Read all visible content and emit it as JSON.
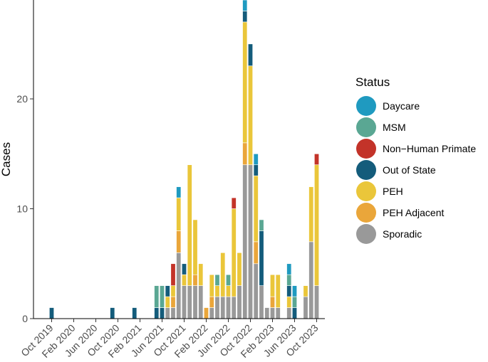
{
  "chart_data": {
    "type": "bar",
    "stacked": true,
    "xlabel": "",
    "ylabel": "Cases",
    "ylim": [
      0,
      29
    ],
    "y_ticks": [
      0,
      10,
      20
    ],
    "x_tick_labels": [
      "Oct 2019",
      "Feb 2020",
      "Jun 2020",
      "Oct 2020",
      "Feb 2021",
      "Jun 2021",
      "Oct 2021",
      "Feb 2022",
      "Jun 2022",
      "Oct 2022",
      "Feb 2023",
      "Jun 2023",
      "Oct 2023"
    ],
    "legend_title": "Status",
    "legend_position": "right",
    "grid": false,
    "categories": [
      "Oct 2019",
      "Nov 2019",
      "Dec 2019",
      "Jan 2020",
      "Feb 2020",
      "Mar 2020",
      "Apr 2020",
      "May 2020",
      "Jun 2020",
      "Jul 2020",
      "Aug 2020",
      "Sep 2020",
      "Oct 2020",
      "Nov 2020",
      "Dec 2020",
      "Jan 2021",
      "Feb 2021",
      "Mar 2021",
      "Apr 2021",
      "May 2021",
      "Jun 2021",
      "Jul 2021",
      "Aug 2021",
      "Sep 2021",
      "Oct 2021",
      "Nov 2021",
      "Dec 2021",
      "Jan 2022",
      "Feb 2022",
      "Mar 2022",
      "Apr 2022",
      "May 2022",
      "Jun 2022",
      "Jul 2022",
      "Aug 2022",
      "Sep 2022",
      "Oct 2022",
      "Nov 2022",
      "Dec 2022",
      "Jan 2023",
      "Feb 2023",
      "Mar 2023",
      "Apr 2023",
      "May 2023",
      "Jun 2023",
      "Jul 2023",
      "Aug 2023",
      "Sep 2023",
      "Oct 2023",
      "Nov 2023"
    ],
    "series": [
      {
        "name": "Sporadic",
        "color": "#999999",
        "values": [
          0,
          0,
          0,
          0,
          0,
          0,
          0,
          0,
          0,
          0,
          0,
          0,
          0,
          0,
          0,
          0,
          0,
          0,
          0,
          0,
          0,
          1,
          1,
          6,
          3,
          3,
          3,
          3,
          0,
          1,
          2,
          2,
          2,
          2,
          3,
          14,
          14,
          5,
          3,
          1,
          1,
          1,
          0,
          1,
          0,
          0,
          2,
          7,
          3,
          0
        ]
      },
      {
        "name": "PEH Adjacent",
        "color": "#EAA63A",
        "values": [
          0,
          0,
          0,
          0,
          0,
          0,
          0,
          0,
          0,
          0,
          0,
          0,
          0,
          0,
          0,
          0,
          0,
          0,
          0,
          0,
          0,
          0,
          1,
          2,
          0,
          0,
          1,
          0,
          1,
          1,
          0,
          0,
          0,
          0,
          0,
          2,
          0,
          2,
          0,
          0,
          1,
          0,
          0,
          0,
          0,
          0,
          0,
          0,
          0,
          0
        ]
      },
      {
        "name": "PEH",
        "color": "#EAC63A",
        "values": [
          0,
          0,
          0,
          0,
          0,
          0,
          0,
          0,
          0,
          0,
          0,
          0,
          0,
          0,
          0,
          0,
          0,
          0,
          0,
          0,
          0,
          1,
          1,
          3,
          1,
          11,
          5,
          2,
          0,
          2,
          1,
          4,
          1,
          8,
          3,
          11,
          9,
          6,
          0,
          0,
          2,
          3,
          0,
          1,
          0,
          0,
          1,
          5,
          11,
          0
        ]
      },
      {
        "name": "Out of State",
        "color": "#145C7B",
        "values": [
          1,
          0,
          0,
          0,
          0,
          0,
          0,
          0,
          0,
          0,
          0,
          1,
          0,
          0,
          0,
          1,
          0,
          0,
          0,
          1,
          1,
          1,
          0,
          0,
          1,
          0,
          0,
          0,
          0,
          0,
          0,
          0,
          0,
          0,
          0,
          1,
          2,
          1,
          5,
          0,
          0,
          0,
          0,
          1,
          1,
          0,
          0,
          0,
          0,
          0
        ]
      },
      {
        "name": "MSM",
        "color": "#5AA793",
        "values": [
          0,
          0,
          0,
          0,
          0,
          0,
          0,
          0,
          0,
          0,
          0,
          0,
          0,
          0,
          0,
          0,
          0,
          0,
          0,
          2,
          2,
          0,
          0,
          0,
          0,
          0,
          0,
          0,
          0,
          0,
          1,
          0,
          1,
          0,
          0,
          0,
          0,
          0,
          1,
          0,
          0,
          0,
          0,
          1,
          1,
          0,
          0,
          0,
          0,
          0
        ]
      },
      {
        "name": "Non−Human Primate",
        "color": "#C33329",
        "values": [
          0,
          0,
          0,
          0,
          0,
          0,
          0,
          0,
          0,
          0,
          0,
          0,
          0,
          0,
          0,
          0,
          0,
          0,
          0,
          0,
          0,
          0,
          2,
          0,
          0,
          0,
          0,
          0,
          0,
          0,
          0,
          0,
          0,
          1,
          0,
          0,
          0,
          0,
          0,
          0,
          0,
          0,
          0,
          0,
          0,
          0,
          0,
          0,
          1,
          0
        ]
      },
      {
        "name": "Daycare",
        "color": "#1F9AC0",
        "values": [
          0,
          0,
          0,
          0,
          0,
          0,
          0,
          0,
          0,
          0,
          0,
          0,
          0,
          0,
          0,
          0,
          0,
          0,
          0,
          0,
          0,
          0,
          0,
          1,
          0,
          0,
          0,
          0,
          0,
          0,
          0,
          0,
          0,
          0,
          0,
          1,
          0,
          1,
          0,
          0,
          0,
          0,
          0,
          1,
          1,
          0,
          0,
          0,
          0,
          0
        ]
      }
    ],
    "legend": [
      {
        "name": "Daycare",
        "color": "#1F9AC0"
      },
      {
        "name": "MSM",
        "color": "#5AA793"
      },
      {
        "name": "Non−Human Primate",
        "color": "#C33329"
      },
      {
        "name": "Out of State",
        "color": "#145C7B"
      },
      {
        "name": "PEH",
        "color": "#EAC63A"
      },
      {
        "name": "PEH Adjacent",
        "color": "#EAA63A"
      },
      {
        "name": "Sporadic",
        "color": "#999999"
      }
    ]
  }
}
